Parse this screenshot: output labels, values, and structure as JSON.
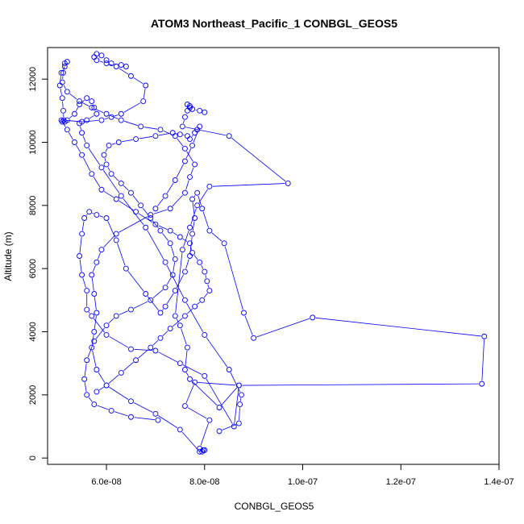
{
  "chart_data": {
    "type": "line",
    "title": "ATOM3 Northeast_Pacific_1 CONBGL_GEOS5",
    "xlabel": "CONBGL_GEOS5",
    "ylabel": "Altitude (m)",
    "xlim": [
      4.8e-08,
      1.4e-07
    ],
    "ylim": [
      -200,
      13000
    ],
    "x_ticks": [
      {
        "value": 6e-08,
        "label": "6.0e-08"
      },
      {
        "value": 8e-08,
        "label": "8.0e-08"
      },
      {
        "value": 1e-07,
        "label": "1.0e-07"
      },
      {
        "value": 1.2e-07,
        "label": "1.2e-07"
      },
      {
        "value": 1.4e-07,
        "label": "1.4e-07"
      }
    ],
    "y_ticks": [
      {
        "value": 0,
        "label": "0"
      },
      {
        "value": 2000,
        "label": "2000"
      },
      {
        "value": 4000,
        "label": "4000"
      },
      {
        "value": 6000,
        "label": "6000"
      },
      {
        "value": 8000,
        "label": "8000"
      },
      {
        "value": 10000,
        "label": "10000"
      },
      {
        "value": 12000,
        "label": "12000"
      }
    ],
    "grid": false,
    "series_color": "#0000ff",
    "marker": "open-circle",
    "series": [
      {
        "x": [
          7.95e-08,
          7.97e-08,
          7.9e-08,
          8.1e-08,
          7.6e-08,
          7.8e-08,
          8.7e-08,
          8.6e-08,
          8e-08,
          7.5e-08,
          7e-08,
          6.5e-08,
          6e-08,
          5.7e-08,
          5.6e-08,
          5.6e-08,
          5.5e-08,
          5.45e-08,
          5.5e-08,
          5.55e-08,
          5.65e-08,
          5.8e-08,
          6e-08,
          6.2e-08,
          6.4e-08,
          6.8e-08,
          7.1e-08,
          7.2e-08,
          7.4e-08,
          7.6e-08,
          7.7e-08,
          7.75e-08,
          7.8e-08,
          7.75e-08,
          7.85e-08,
          7.95e-08,
          8.1e-08,
          8.4e-08,
          8.8e-08,
          9e-08,
          1.02e-07,
          1.37e-07,
          1.365e-07,
          8.7e-08,
          8.3e-08,
          7.7e-08,
          7.6e-08,
          7.65e-08,
          7.5e-08,
          7.4e-08,
          7.55e-08,
          7.7e-08,
          7.85e-08,
          8.1e-08,
          9.7e-08,
          8.5e-08,
          7.55e-08,
          7.6e-08,
          7.65e-08,
          7.7e-08,
          7.7e-08,
          7.65e-08,
          7.75e-08,
          7.9e-08,
          8e-08
        ],
        "y": [
          200,
          250,
          300,
          1200,
          1650,
          2400,
          2300,
          1000,
          2600,
          3000,
          3400,
          3450,
          3900,
          4500,
          4700,
          5300,
          5800,
          6400,
          7100,
          7600,
          7800,
          7700,
          7600,
          6900,
          6000,
          5200,
          4600,
          4800,
          5300,
          5900,
          6400,
          7100,
          7600,
          8200,
          8400,
          7900,
          7200,
          6800,
          4600,
          3800,
          4450,
          3850,
          2350,
          2300,
          1600,
          2500,
          2800,
          3500,
          4200,
          4500,
          6600,
          7300,
          8000,
          8600,
          8700,
          10200,
          10500,
          10800,
          11000,
          11100,
          11150,
          11200,
          11050,
          11000,
          10950
        ]
      },
      {
        "x": [
          8e-08,
          7.9e-08,
          7.5e-08,
          7e-08,
          6.5e-08,
          6e-08,
          5.8e-08,
          5.7e-08,
          5.75e-08,
          5.8e-08,
          5.75e-08,
          5.7e-08,
          5.8e-08,
          5.9e-08,
          6.2e-08,
          6.9e-08,
          7.3e-08,
          7.6e-08,
          7.7e-08,
          7.8e-08,
          7.6e-08,
          7.4e-08,
          7.1e-08,
          6.7e-08,
          6.3e-08,
          6e-08,
          5.7e-08,
          5.45e-08,
          5.2e-08,
          5.1e-08,
          5.12e-08,
          5.15e-08,
          5.2e-08,
          5.15e-08,
          5.08e-08,
          5.05e-08,
          5.1e-08,
          5.12e-08,
          5.13e-08,
          5.5e-08,
          5.9e-08,
          6.1e-08,
          6.3e-08,
          6.75e-08,
          6.8e-08,
          6.5e-08,
          6.2e-08,
          6e-08,
          5.8e-08,
          5.75e-08,
          5.8e-08,
          5.9e-08,
          6e-08,
          6.1e-08,
          6.3e-08,
          6.4e-08
        ],
        "y": [
          250,
          200,
          900,
          1400,
          1800,
          2300,
          2800,
          3500,
          4000,
          4600,
          5200,
          5800,
          6200,
          6600,
          7100,
          7700,
          7900,
          8400,
          8900,
          9300,
          9800,
          10200,
          10400,
          10500,
          10700,
          10900,
          11100,
          11300,
          11600,
          11900,
          12200,
          12500,
          12550,
          12400,
          12200,
          11800,
          11400,
          11000,
          10700,
          10650,
          10700,
          10800,
          10900,
          11300,
          11800,
          12100,
          12400,
          12500,
          12600,
          12700,
          12800,
          12750,
          12600,
          12500,
          12450,
          12400
        ]
      },
      {
        "x": [
          8.3e-08,
          8.7e-08,
          8.72e-08,
          8.75e-08,
          8.5e-08,
          8e-08,
          7.6e-08,
          7.2e-08,
          6.8e-08,
          6.3e-08,
          5.9e-08,
          5.6e-08,
          5.5e-08,
          5.45e-08,
          5.6e-08,
          5.8e-08,
          5.75e-08,
          5.7e-08,
          5.6e-08,
          5.45e-08,
          5.35e-08,
          5.2e-08,
          5.15e-08,
          5.1e-08,
          5.08e-08,
          5.2e-08,
          5.35e-08,
          5.5e-08,
          5.7e-08,
          5.9e-08,
          6.2e-08,
          6.6e-08,
          7e-08,
          7.3e-08,
          7.5e-08,
          7.7e-08,
          7.75e-08,
          7.9e-08,
          8e-08,
          8.05e-08,
          8.1e-08,
          7.95e-08,
          7.8e-08,
          7.6e-08,
          7.3e-08,
          7.1e-08,
          6.9e-08,
          6.6e-08,
          6.3e-08,
          6e-08,
          5.8e-08
        ],
        "y": [
          850,
          1100,
          1700,
          2000,
          2800,
          3900,
          5000,
          6200,
          7300,
          8300,
          9200,
          9900,
          10300,
          10600,
          10700,
          10900,
          11100,
          11300,
          11400,
          11200,
          10900,
          10700,
          10650,
          10650,
          10700,
          10400,
          10000,
          9600,
          9000,
          8500,
          8200,
          7800,
          7400,
          7200,
          7000,
          6800,
          6500,
          6200,
          5900,
          5600,
          5300,
          5000,
          4800,
          4500,
          4100,
          3800,
          3500,
          3100,
          2700,
          2300,
          2100
        ]
      },
      {
        "x": [
          7.05e-08,
          6.5e-08,
          6.1e-08,
          5.75e-08,
          5.6e-08,
          5.55e-08,
          5.6e-08,
          5.75e-08,
          6e-08,
          6.2e-08,
          6.5e-08,
          6.9e-08,
          7.2e-08,
          7.35e-08,
          7.4e-08,
          7.3e-08,
          7.1e-08,
          6.9e-08,
          6.7e-08,
          6.5e-08,
          6.3e-08,
          6.1e-08,
          6e-08,
          5.95e-08,
          6.05e-08,
          6.25e-08,
          6.6e-08,
          7e-08,
          7.35e-08,
          7.5e-08,
          7.65e-08,
          7.7e-08,
          7.8e-08,
          7.85e-08,
          7.9e-08,
          7.75e-08,
          7.6e-08,
          7.4e-08,
          7.2e-08,
          7e-08
        ],
        "y": [
          1200,
          1300,
          1500,
          1700,
          2000,
          2500,
          3100,
          3700,
          4200,
          4500,
          4700,
          5000,
          5400,
          5800,
          6300,
          6800,
          7200,
          7600,
          8000,
          8400,
          8700,
          9000,
          9300,
          9600,
          9900,
          10000,
          10100,
          10200,
          10300,
          10250,
          10200,
          10100,
          10300,
          10400,
          10500,
          9900,
          9400,
          8800,
          8300,
          7900
        ]
      }
    ]
  }
}
